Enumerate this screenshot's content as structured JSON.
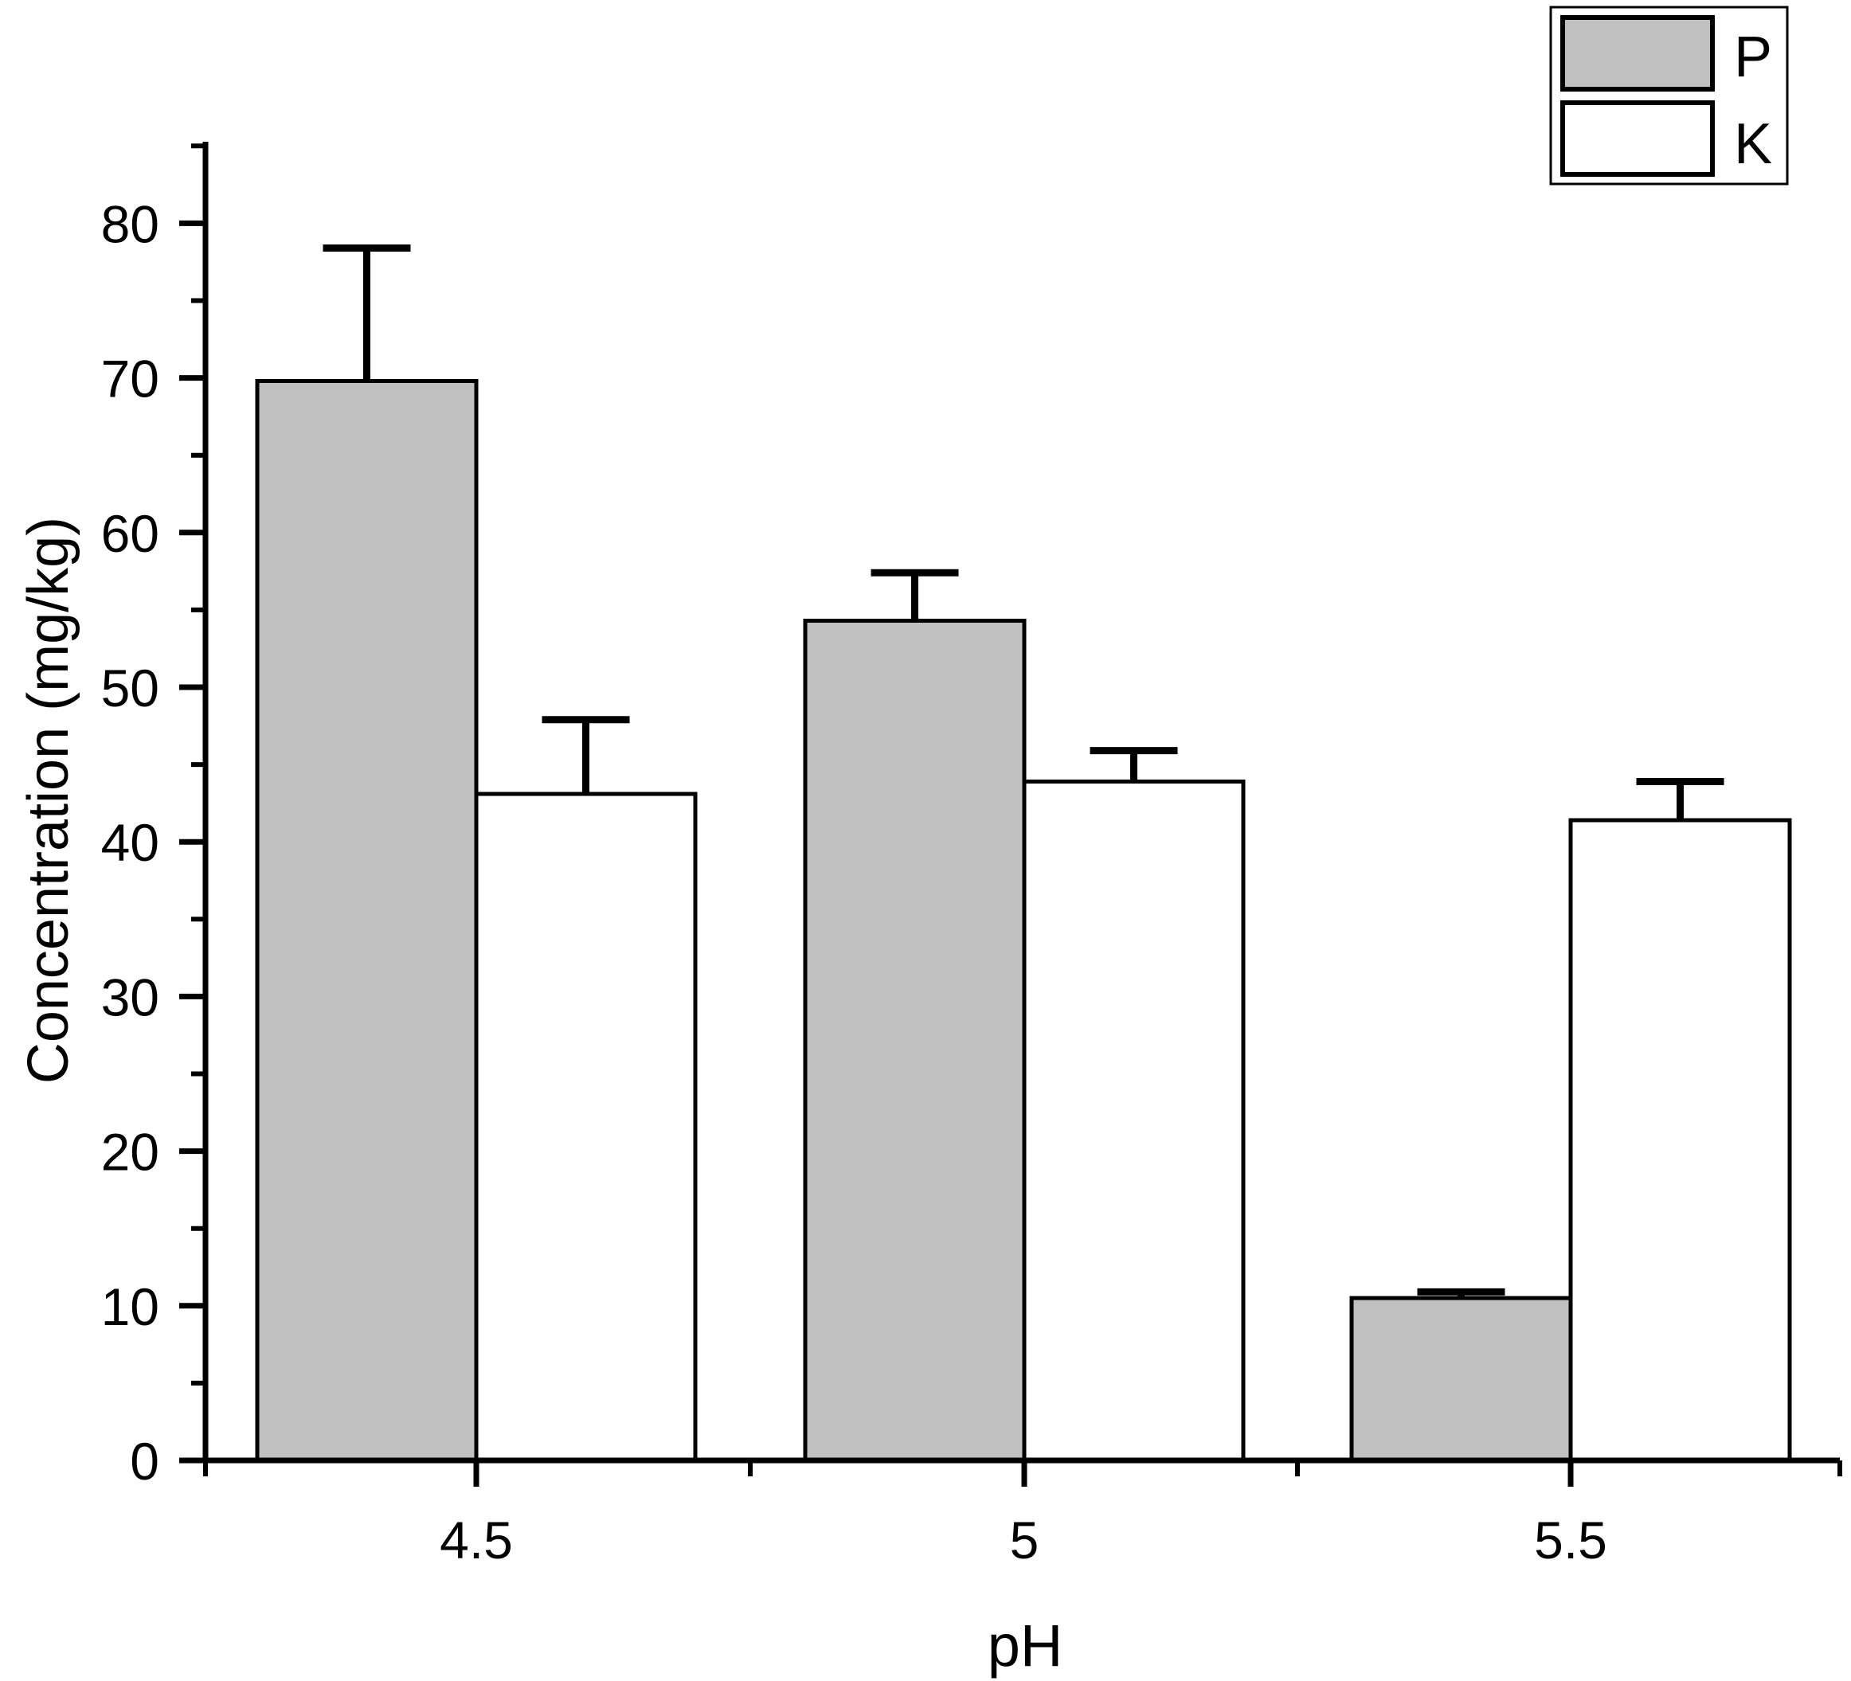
{
  "chart_data": {
    "type": "bar",
    "xlabel": "pH",
    "ylabel": "Concentration (mg/kg)",
    "categories": [
      "4.5",
      "5",
      "5.5"
    ],
    "series": [
      {
        "name": "P",
        "values": [
          69.8,
          54.3,
          10.5
        ],
        "errors": [
          8.6,
          3.1,
          0.4
        ]
      },
      {
        "name": "K",
        "values": [
          43.1,
          43.9,
          41.4
        ],
        "errors": [
          4.8,
          2.0,
          2.5
        ]
      }
    ],
    "ylim": [
      0,
      85
    ],
    "yticks": [
      "0",
      "10",
      "20",
      "30",
      "40",
      "50",
      "60",
      "70",
      "80"
    ],
    "legend_position": "top-right",
    "grid": false
  },
  "colors": {
    "P": "#c0c0c0",
    "K": "#ffffff",
    "stroke": "#000000"
  }
}
